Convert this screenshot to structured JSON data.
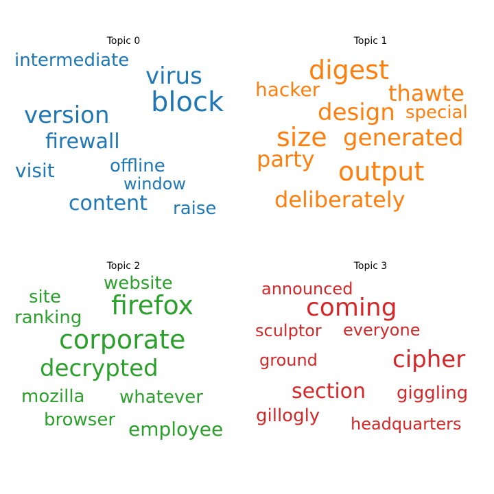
{
  "chart_data": [
    {
      "type": "wordcloud",
      "title": "Topic 0",
      "color": "#1f77b4",
      "words": [
        "block",
        "virus",
        "version",
        "intermediate",
        "firewall",
        "offline",
        "visit",
        "content",
        "window",
        "raise"
      ]
    },
    {
      "type": "wordcloud",
      "title": "Topic 1",
      "color": "#ff7f0e",
      "words": [
        "digest",
        "output",
        "size",
        "generated",
        "design",
        "thawte",
        "deliberately",
        "party",
        "hacker",
        "special"
      ]
    },
    {
      "type": "wordcloud",
      "title": "Topic 2",
      "color": "#2ca02c",
      "words": [
        "corporate",
        "firefox",
        "decrypted",
        "whatever",
        "mozilla",
        "ranking",
        "website",
        "site",
        "employee",
        "browser"
      ]
    },
    {
      "type": "wordcloud",
      "title": "Topic 3",
      "color": "#d62728",
      "words": [
        "coming",
        "cipher",
        "section",
        "sculptor",
        "everyone",
        "ground",
        "giggling",
        "announced",
        "gillogly",
        "headquarters"
      ]
    }
  ]
}
